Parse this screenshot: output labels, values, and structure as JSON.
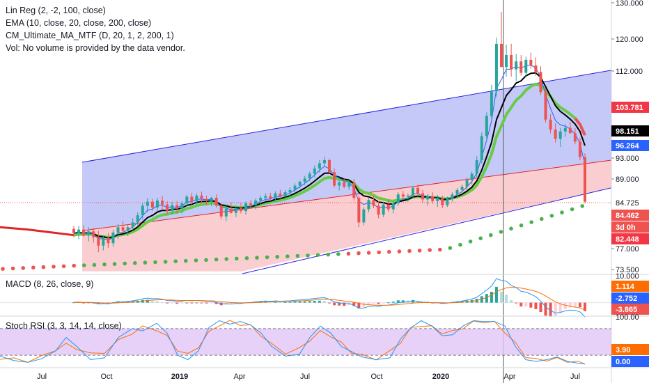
{
  "legend": {
    "linreg": "Lin Reg (2, -2, 100, close)",
    "ema": "EMA (10, close, 20, close, 200, close)",
    "cm": "CM_Ultimate_MA_MTF (D, 20, 1, 2, 200, 1)",
    "vol": "Vol: No volume is provided by the data vendor."
  },
  "macd_label": "MACD (8, 26, close, 9)",
  "stoch_label": "Stoch RSI (3, 3, 14, 14, close)",
  "colors": {
    "up": "#26a69a",
    "down": "#ef5350",
    "ema_fast": "#2962ff",
    "ema_slow": "#000000",
    "cm_ma": "#66cc44",
    "channel_line": "#2424e0",
    "mid_line": "#e02424",
    "upper_fill": "#bfc3f7",
    "lower_fill": "#f9c9cc",
    "macd_line": "#2196f3",
    "signal_line": "#ff6d00",
    "stoch_k": "#2196f3",
    "stoch_d": "#ff6d00",
    "stoch_band": "#e1c6f7"
  },
  "chart_data": [
    {
      "type": "candlestick",
      "panel": "price",
      "y_axis_ticks": [
        "130.000",
        "120.000",
        "112.000",
        "93.000",
        "89.000",
        "84.725",
        "77.000",
        "73.500"
      ],
      "ylim": [
        72,
        130
      ],
      "x_axis_ticks": [
        "Jul",
        "Oct",
        "2019",
        "Apr",
        "Jul",
        "Oct",
        "2020",
        "Apr",
        "Jul"
      ],
      "price_badges": [
        {
          "label": "103.781",
          "color": "#f23645"
        },
        {
          "label": "98.151",
          "color": "#000000"
        },
        {
          "label": "96.264",
          "color": "#2962ff"
        },
        {
          "label": "84.462",
          "color": "#ef5350"
        },
        {
          "label": "3d 0h",
          "color": "#ef5350"
        },
        {
          "label": "82.448",
          "color": "#f23645"
        }
      ],
      "ohlc": [
        [
          80.3,
          80.8,
          78.9,
          79.6
        ],
        [
          79.6,
          80.8,
          78.6,
          80.2
        ],
        [
          80.2,
          80.9,
          79.0,
          79.2
        ],
        [
          79.2,
          80.6,
          78.2,
          79.9
        ],
        [
          79.9,
          80.5,
          78.0,
          78.9
        ],
        [
          78.9,
          80.0,
          76.4,
          77.5
        ],
        [
          77.5,
          79.2,
          76.7,
          78.8
        ],
        [
          78.8,
          79.6,
          77.1,
          77.9
        ],
        [
          77.9,
          80.2,
          77.3,
          79.7
        ],
        [
          79.7,
          81.1,
          78.6,
          80.6
        ],
        [
          80.6,
          81.7,
          79.6,
          80.0
        ],
        [
          80.0,
          81.1,
          79.1,
          80.6
        ],
        [
          80.6,
          82.1,
          80.1,
          81.4
        ],
        [
          81.4,
          83.1,
          80.7,
          82.6
        ],
        [
          82.6,
          84.6,
          81.9,
          84.2
        ],
        [
          84.2,
          85.6,
          83.1,
          84.9
        ],
        [
          84.9,
          85.4,
          83.3,
          83.9
        ],
        [
          83.9,
          85.6,
          83.3,
          85.1
        ],
        [
          85.1,
          86.0,
          83.6,
          84.4
        ],
        [
          84.4,
          85.0,
          82.8,
          83.3
        ],
        [
          83.3,
          84.9,
          82.7,
          84.3
        ],
        [
          84.3,
          85.0,
          82.9,
          83.7
        ],
        [
          83.7,
          85.0,
          82.9,
          84.6
        ],
        [
          84.6,
          86.1,
          84.0,
          85.8
        ],
        [
          85.8,
          86.5,
          84.4,
          85.0
        ],
        [
          85.0,
          86.4,
          84.4,
          86.0
        ],
        [
          86.0,
          86.7,
          84.7,
          85.4
        ],
        [
          85.4,
          86.0,
          84.3,
          85.0
        ],
        [
          85.0,
          85.8,
          84.1,
          85.6
        ],
        [
          85.6,
          86.2,
          83.9,
          84.2
        ],
        [
          84.2,
          84.6,
          81.9,
          82.4
        ],
        [
          82.4,
          84.4,
          81.6,
          83.7
        ],
        [
          83.7,
          84.8,
          82.9,
          83.0
        ],
        [
          83.0,
          84.2,
          82.3,
          83.8
        ],
        [
          83.8,
          84.6,
          82.9,
          83.3
        ],
        [
          83.3,
          84.9,
          82.7,
          84.6
        ],
        [
          84.6,
          85.2,
          83.7,
          84.3
        ],
        [
          84.3,
          85.5,
          83.6,
          85.1
        ],
        [
          85.1,
          86.0,
          84.4,
          85.6
        ],
        [
          85.6,
          86.4,
          84.9,
          85.9
        ],
        [
          85.9,
          86.5,
          85.0,
          85.5
        ],
        [
          85.5,
          86.8,
          84.8,
          86.4
        ],
        [
          86.4,
          87.0,
          85.4,
          85.9
        ],
        [
          85.9,
          87.0,
          85.4,
          86.6
        ],
        [
          86.6,
          87.5,
          85.9,
          87.0
        ],
        [
          87.0,
          88.2,
          86.4,
          87.8
        ],
        [
          87.8,
          88.7,
          87.3,
          88.5
        ],
        [
          88.5,
          89.6,
          87.9,
          89.1
        ],
        [
          89.1,
          90.4,
          88.6,
          90.0
        ],
        [
          90.0,
          91.6,
          89.3,
          91.0
        ],
        [
          91.0,
          92.6,
          90.2,
          92.0
        ],
        [
          92.0,
          93.3,
          91.3,
          92.6
        ],
        [
          92.6,
          92.9,
          90.0,
          90.3
        ],
        [
          90.3,
          91.0,
          87.4,
          87.8
        ],
        [
          87.8,
          88.8,
          86.9,
          88.4
        ],
        [
          88.4,
          89.2,
          87.3,
          87.6
        ],
        [
          87.6,
          88.8,
          87.0,
          88.3
        ],
        [
          88.3,
          89.0,
          85.1,
          85.6
        ],
        [
          85.6,
          86.0,
          80.6,
          81.4
        ],
        [
          81.4,
          84.0,
          80.9,
          83.6
        ],
        [
          83.6,
          85.6,
          83.1,
          85.2
        ],
        [
          85.2,
          86.0,
          83.8,
          84.2
        ],
        [
          84.2,
          85.0,
          82.1,
          82.7
        ],
        [
          82.7,
          84.9,
          82.3,
          84.4
        ],
        [
          84.4,
          85.4,
          83.2,
          83.6
        ],
        [
          83.6,
          85.0,
          82.9,
          84.6
        ],
        [
          84.6,
          86.6,
          84.2,
          86.2
        ],
        [
          86.2,
          86.8,
          85.3,
          85.8
        ],
        [
          85.8,
          86.4,
          84.9,
          86.0
        ],
        [
          86.0,
          87.7,
          85.6,
          87.4
        ],
        [
          87.4,
          88.0,
          85.8,
          86.4
        ],
        [
          86.4,
          87.0,
          84.7,
          85.3
        ],
        [
          85.3,
          86.3,
          84.2,
          85.9
        ],
        [
          85.9,
          86.6,
          84.5,
          85.0
        ],
        [
          85.0,
          86.1,
          84.0,
          85.6
        ],
        [
          85.6,
          86.0,
          83.8,
          84.3
        ],
        [
          84.3,
          85.8,
          84.0,
          85.4
        ],
        [
          85.4,
          86.6,
          84.9,
          86.2
        ],
        [
          86.2,
          87.4,
          85.5,
          87.0
        ],
        [
          87.0,
          88.0,
          86.3,
          87.6
        ],
        [
          87.6,
          89.2,
          87.0,
          88.8
        ],
        [
          88.8,
          90.4,
          88.0,
          90.0
        ],
        [
          90.0,
          93.4,
          89.4,
          92.6
        ],
        [
          92.6,
          98.6,
          92.0,
          97.8
        ],
        [
          97.8,
          103.0,
          96.6,
          102.2
        ],
        [
          102.2,
          109.0,
          101.4,
          107.6
        ],
        [
          107.6,
          120.4,
          106.4,
          118.8
        ],
        [
          118.8,
          127.5,
          113.4,
          113.0
        ],
        [
          113.0,
          118.6,
          110.8,
          116.0
        ],
        [
          116.0,
          118.8,
          110.8,
          112.4
        ],
        [
          112.4,
          116.2,
          109.8,
          114.4
        ],
        [
          114.4,
          116.0,
          111.0,
          111.6
        ],
        [
          111.6,
          115.6,
          110.6,
          114.8
        ],
        [
          114.8,
          116.6,
          112.6,
          113.4
        ],
        [
          113.4,
          115.4,
          111.0,
          111.8
        ],
        [
          111.8,
          113.2,
          106.8,
          107.4
        ],
        [
          107.4,
          108.2,
          100.8,
          101.4
        ],
        [
          101.4,
          102.6,
          98.4,
          99.2
        ],
        [
          99.2,
          100.6,
          96.4,
          97.2
        ],
        [
          97.2,
          99.6,
          95.4,
          98.8
        ],
        [
          98.8,
          100.4,
          97.6,
          99.6
        ],
        [
          99.6,
          100.9,
          98.4,
          98.4
        ],
        [
          98.4,
          99.6,
          96.0,
          96.6
        ],
        [
          96.6,
          97.4,
          92.6,
          93.2
        ],
        [
          93.2,
          94.0,
          84.6,
          84.9
        ]
      ],
      "series": [
        {
          "name": "EMA fast (blue)",
          "values": []
        },
        {
          "name": "EMA slow (black)",
          "values": []
        },
        {
          "name": "CM MA (green/red)",
          "values": []
        },
        {
          "name": "Lin Reg channel",
          "values": []
        }
      ]
    },
    {
      "type": "bar",
      "panel": "macd",
      "y_axis_ticks": [
        "10.000",
        "1.114",
        "-2.752",
        "-3.865"
      ],
      "ylim": [
        -4.6,
        10.2
      ],
      "price_badges": [
        {
          "label": "1.114",
          "color": "#ff6d00"
        },
        {
          "label": "-2.752",
          "color": "#2962ff"
        },
        {
          "label": "-3.865",
          "color": "#ef5350"
        }
      ]
    },
    {
      "type": "line",
      "panel": "stoch_rsi",
      "y_axis_ticks": [
        "100.00",
        "3.90",
        "0.00"
      ],
      "ylim": [
        -5,
        105
      ],
      "price_badges": [
        {
          "label": "3.90",
          "color": "#ff6d00"
        },
        {
          "label": "0.00",
          "color": "#2962ff"
        }
      ]
    }
  ]
}
